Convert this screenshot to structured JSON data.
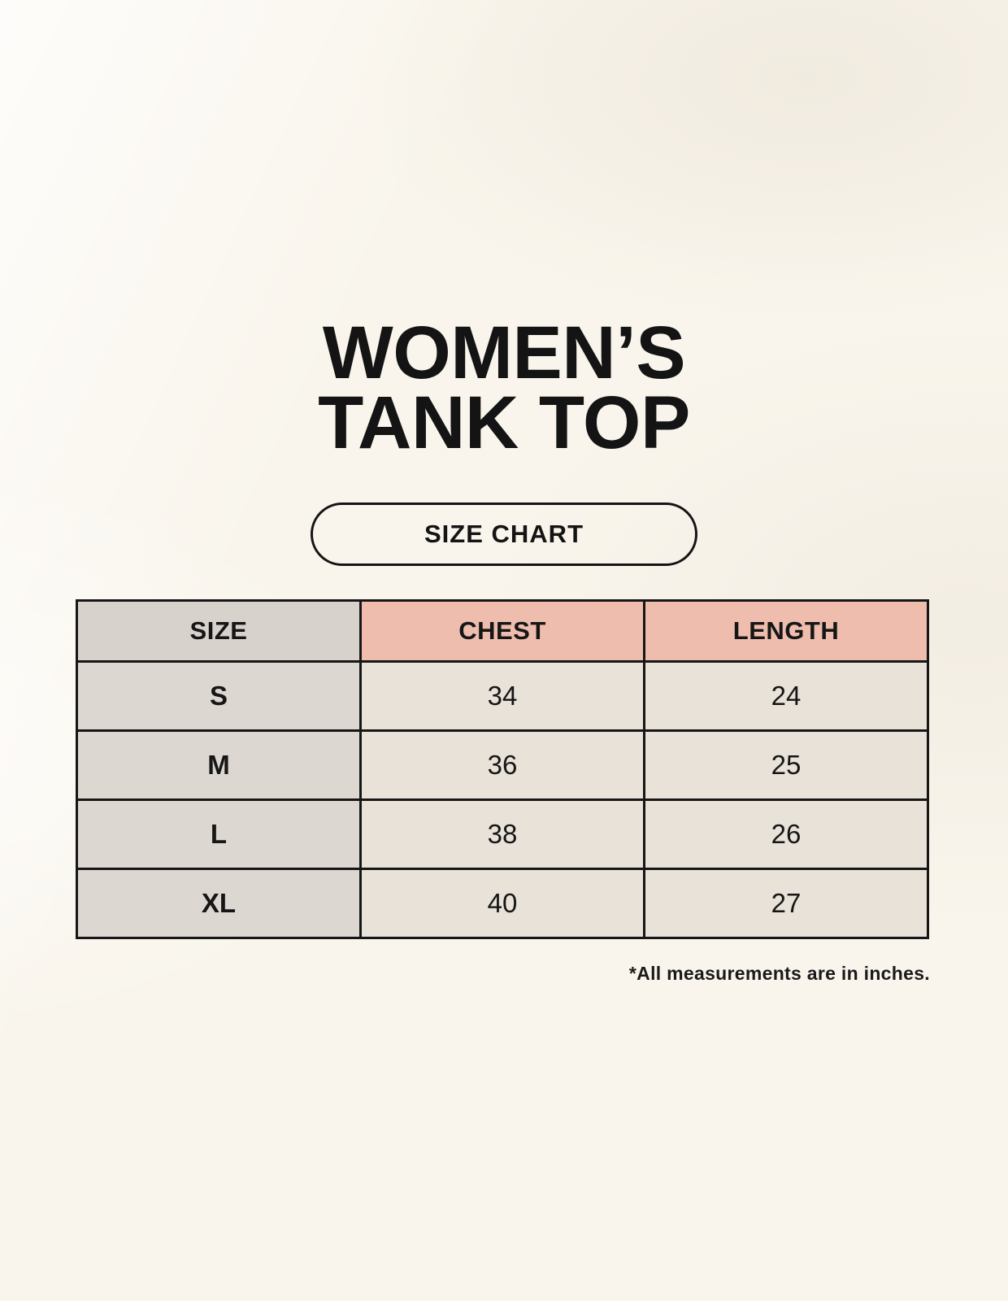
{
  "page_title": {
    "line1": "WOMEN’S",
    "line2": "TANK TOP"
  },
  "size_chart_button_label": "SIZE CHART",
  "footnote": "*All measurements are in inches.",
  "colors": {
    "background": "#f9f5ec",
    "header_size_bg": "#d8d2cd",
    "header_measure_bg": "#eebdad",
    "row_label_bg": "#ddd7d2",
    "data_cell_bg": "#e9e2d8",
    "border": "#161616",
    "text": "#141414"
  },
  "chart_data": {
    "type": "table",
    "title": "WOMEN’S TANK TOP",
    "subtitle": "SIZE CHART",
    "note": "*All measurements are in inches.",
    "units": "inches",
    "columns": [
      "SIZE",
      "CHEST",
      "LENGTH"
    ],
    "rows": [
      [
        "S",
        "34",
        "24"
      ],
      [
        "M",
        "36",
        "25"
      ],
      [
        "L",
        "38",
        "26"
      ],
      [
        "XL",
        "40",
        "27"
      ]
    ]
  }
}
